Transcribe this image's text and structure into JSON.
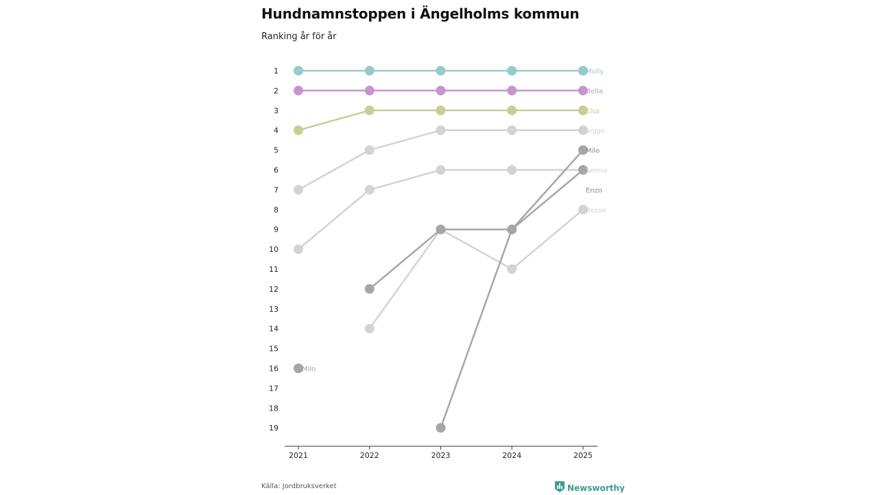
{
  "header": {
    "title": "Hundnamnstoppen i Ängelholms kommun",
    "subtitle": "Ranking år för år"
  },
  "footer": {
    "source": "Källa: Jordbruksverket",
    "brand": "Newsworthy"
  },
  "icons": {
    "brand_logo": "newsworthy-logo-icon"
  },
  "chart_data": {
    "type": "line",
    "title": "Hundnamnstoppen i Ängelholms kommun",
    "subtitle": "Ranking år för år",
    "xlabel": "",
    "ylabel": "",
    "x": [
      "2021",
      "2022",
      "2023",
      "2024",
      "2025"
    ],
    "ylim": [
      1,
      19
    ],
    "y_inverted": true,
    "y_ticks": [
      "1",
      "2",
      "3",
      "4",
      "5",
      "6",
      "7",
      "8",
      "9",
      "10",
      "11",
      "12",
      "13",
      "14",
      "15",
      "16",
      "17",
      "18",
      "19"
    ],
    "grid": false,
    "series": [
      {
        "name": "Bosse",
        "label": "Bosse",
        "color": "#d3d3d3",
        "values": [
          null,
          14,
          9,
          11,
          8
        ]
      },
      {
        "name": "Selma",
        "label": "Selma",
        "color": "#d3d3d3",
        "values": [
          10,
          7,
          6,
          6,
          6
        ]
      },
      {
        "name": "Sigge",
        "label": "Sigge",
        "color": "#d3d3d3",
        "values": [
          7,
          5,
          4,
          4,
          4
        ]
      },
      {
        "name": "Enzo",
        "label": "Enzo",
        "color": "#a6a6a6",
        "values": [
          null,
          12,
          9,
          9,
          6
        ]
      },
      {
        "name": "Milo",
        "label": "Milo",
        "color": "#a6a6a6",
        "values": [
          16,
          null,
          19,
          9,
          5
        ]
      },
      {
        "name": "Elsa",
        "label": "Elsa",
        "color": "#cbcb96",
        "values": [
          4,
          3,
          3,
          3,
          3
        ]
      },
      {
        "name": "Bella",
        "label": "Bella",
        "color": "#c994cf",
        "values": [
          2,
          2,
          2,
          2,
          2
        ]
      },
      {
        "name": "Molly",
        "label": "Molly",
        "color": "#96cbcb",
        "values": [
          1,
          1,
          1,
          1,
          1
        ]
      }
    ],
    "end_labels": [
      {
        "text": "Molly",
        "rank": 1,
        "color": "#96cbcb"
      },
      {
        "text": "Bella",
        "rank": 2,
        "color": "#c994cf"
      },
      {
        "text": "Elsa",
        "rank": 3,
        "color": "#cbcb96"
      },
      {
        "text": "Sigge",
        "rank": 4,
        "color": "#d3d3d3"
      },
      {
        "text": "Milo",
        "rank": 5,
        "color": "#888888"
      },
      {
        "text": "Selma",
        "rank": 6,
        "color": "#d3d3d3"
      },
      {
        "text": "Enzo",
        "rank": 7,
        "color": "#888888"
      },
      {
        "text": "Bosse",
        "rank": 8,
        "color": "#d3d3d3"
      }
    ],
    "start_labels": [
      {
        "text": "Milo",
        "year": "2021",
        "rank": 16,
        "color": "#a6a6a6"
      }
    ]
  }
}
